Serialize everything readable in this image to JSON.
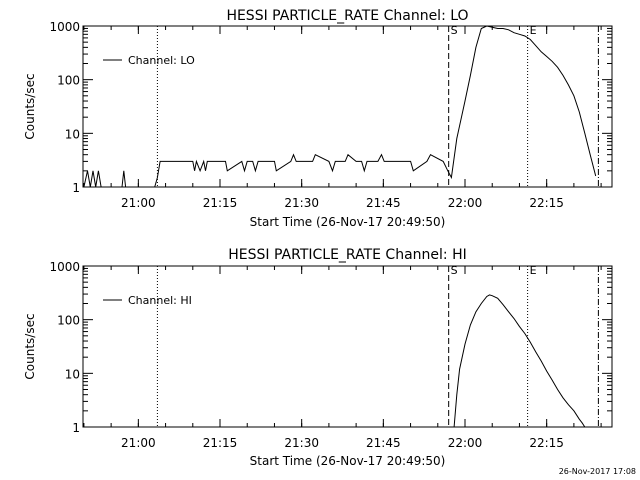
{
  "footer": {
    "timestamp": "26-Nov-2017 17:08"
  },
  "chart_data": [
    {
      "type": "line",
      "title": "HESSI PARTICLE_RATE Channel: LO",
      "xlabel": "Start Time (26-Nov-17 20:49:50)",
      "ylabel": "Counts/sec",
      "y_scale": "log",
      "xlim": [
        "20:49:50",
        "22:27:00"
      ],
      "ylim": [
        1,
        1000
      ],
      "x_ticks": [
        "21:00",
        "21:15",
        "21:30",
        "21:45",
        "22:00",
        "22:15"
      ],
      "y_ticks": [
        "1",
        "10",
        "100",
        "1000"
      ],
      "grid": false,
      "legend": {
        "position": "top-left",
        "entries": [
          "Channel: LO"
        ]
      },
      "markers": [
        {
          "time": "21:03:30",
          "style": "dotted",
          "label": ""
        },
        {
          "time": "21:57:00",
          "style": "dashed",
          "label": "S"
        },
        {
          "time": "22:11:30",
          "style": "dotted",
          "label": "E"
        },
        {
          "time": "22:24:30",
          "style": "dashdot",
          "label": ""
        }
      ],
      "series": [
        {
          "name": "Channel: LO",
          "x": [
            "20:50:00",
            "20:50:40",
            "20:51:10",
            "20:51:40",
            "20:52:10",
            "20:52:40",
            "20:53:10",
            "20:57:00",
            "20:57:20",
            "20:57:40",
            "20:58:00",
            "21:03:00",
            "21:03:30",
            "21:04:00",
            "21:10:00",
            "21:10:20",
            "21:10:40",
            "21:11:20",
            "21:12:00",
            "21:12:20",
            "21:12:40",
            "21:13:00",
            "21:16:00",
            "21:16:20",
            "21:19:00",
            "21:19:30",
            "21:20:00",
            "21:21:00",
            "21:21:30",
            "21:22:00",
            "21:25:00",
            "21:25:20",
            "21:28:00",
            "21:28:30",
            "21:29:00",
            "21:32:00",
            "21:32:30",
            "21:35:00",
            "21:35:40",
            "21:36:10",
            "21:38:00",
            "21:38:30",
            "21:40:00",
            "21:41:00",
            "21:41:30",
            "21:42:00",
            "21:44:00",
            "21:44:40",
            "21:45:10",
            "21:47:00",
            "21:50:00",
            "21:50:30",
            "21:53:00",
            "21:53:40",
            "21:56:00",
            "21:56:50",
            "21:57:30",
            "21:58:30",
            "22:00:00",
            "22:01:00",
            "22:02:00",
            "22:03:00",
            "22:04:00",
            "22:05:00",
            "22:06:00",
            "22:07:00",
            "22:08:00",
            "22:09:00",
            "22:10:00",
            "22:11:00",
            "22:12:00",
            "22:13:00",
            "22:14:00",
            "22:15:00",
            "22:16:00",
            "22:17:00",
            "22:18:00",
            "22:19:00",
            "22:20:00",
            "22:21:00",
            "22:22:00",
            "22:23:00",
            "22:24:00"
          ],
          "values": [
            1,
            2,
            1,
            2,
            1,
            2,
            1,
            1,
            2,
            1,
            1,
            1,
            1.5,
            3,
            3,
            2,
            3,
            2,
            3,
            2,
            3,
            3,
            3,
            2,
            3,
            2,
            3,
            3,
            2,
            3,
            3,
            2,
            3,
            4,
            3,
            3,
            4,
            3,
            2,
            3,
            3,
            4,
            3,
            3,
            2,
            3,
            3,
            4,
            3,
            3,
            3,
            2,
            3,
            4,
            3,
            2,
            1.5,
            8,
            40,
            120,
            400,
            900,
            1000,
            950,
            900,
            900,
            850,
            750,
            700,
            650,
            560,
            430,
            330,
            270,
            220,
            170,
            120,
            80,
            50,
            25,
            10,
            4,
            1.6
          ]
        }
      ]
    },
    {
      "type": "line",
      "title": "HESSI PARTICLE_RATE Channel: HI",
      "xlabel": "Start Time (26-Nov-17 20:49:50)",
      "ylabel": "Counts/sec",
      "y_scale": "log",
      "xlim": [
        "20:49:50",
        "22:27:00"
      ],
      "ylim": [
        1,
        1000
      ],
      "x_ticks": [
        "21:00",
        "21:15",
        "21:30",
        "21:45",
        "22:00",
        "22:15"
      ],
      "y_ticks": [
        "1",
        "10",
        "100",
        "1000"
      ],
      "grid": false,
      "legend": {
        "position": "top-left",
        "entries": [
          "Channel: HI"
        ]
      },
      "markers": [
        {
          "time": "21:03:30",
          "style": "dotted",
          "label": ""
        },
        {
          "time": "21:57:00",
          "style": "dashed",
          "label": "S"
        },
        {
          "time": "22:11:30",
          "style": "dotted",
          "label": "E"
        },
        {
          "time": "22:24:30",
          "style": "dashdot",
          "label": ""
        }
      ],
      "series": [
        {
          "name": "Channel: HI",
          "x": [
            "21:58:00",
            "21:58:30",
            "21:59:00",
            "22:00:00",
            "22:01:00",
            "22:02:00",
            "22:03:00",
            "22:04:00",
            "22:04:30",
            "22:05:00",
            "22:06:00",
            "22:07:00",
            "22:08:00",
            "22:09:00",
            "22:10:00",
            "22:11:00",
            "22:12:00",
            "22:13:00",
            "22:14:00",
            "22:15:00",
            "22:16:00",
            "22:17:00",
            "22:18:00",
            "22:19:00",
            "22:20:00",
            "22:21:00",
            "22:21:30",
            "22:22:00"
          ],
          "values": [
            1,
            4,
            12,
            35,
            80,
            140,
            200,
            270,
            290,
            280,
            250,
            190,
            140,
            105,
            75,
            55,
            38,
            25,
            17,
            11,
            7.5,
            5,
            3.5,
            2.6,
            2,
            1.4,
            1.2,
            1
          ]
        }
      ]
    }
  ]
}
